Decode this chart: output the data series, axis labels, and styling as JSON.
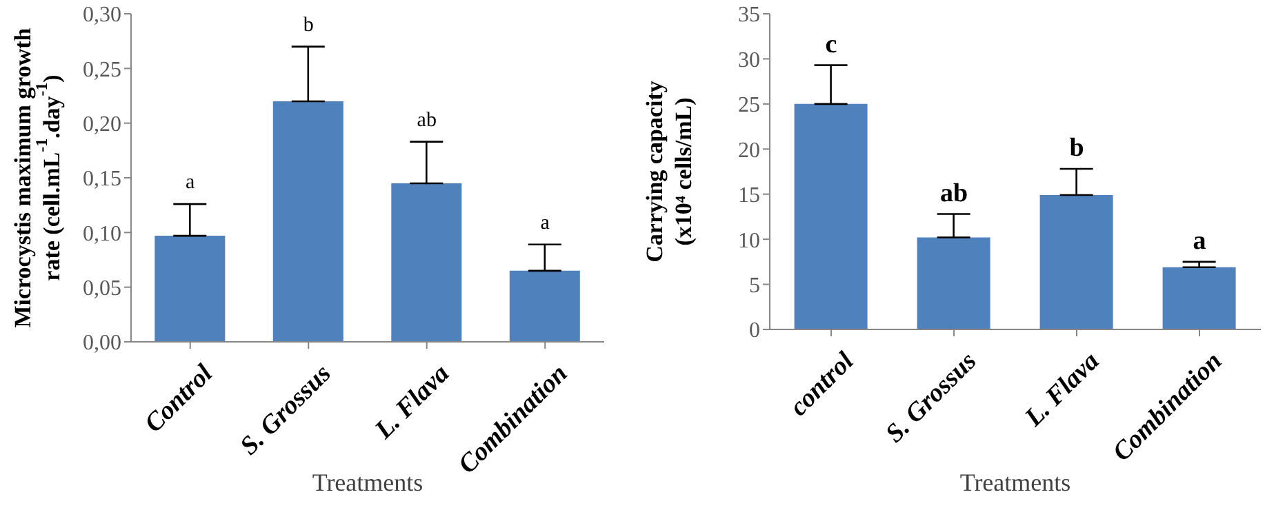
{
  "chart_data": [
    {
      "type": "bar",
      "xlabel": "Treatments",
      "ylabel": "Microcystis maximum growth rate (cell.mL$^{-1}$.day$^{-1}$)",
      "categories": [
        "Control",
        "S. Grossus",
        "L. Flava",
        "Combination"
      ],
      "series": [
        {
          "color": "#4f81bd",
          "values": [
            0.097,
            0.22,
            0.145,
            0.065
          ],
          "errors": [
            0.029,
            0.05,
            0.038,
            0.024
          ]
        }
      ],
      "ylim": [
        0,
        0.3
      ],
      "yticks": [
        {
          "value": 0,
          "label": "0,00"
        },
        {
          "value": 0.05,
          "label": "0,05"
        },
        {
          "value": 0.1,
          "label": "0,10"
        },
        {
          "value": 0.15,
          "label": "0,15"
        },
        {
          "value": 0.2,
          "label": "0,20"
        },
        {
          "value": 0.25,
          "label": "0,25"
        },
        {
          "value": 0.3,
          "label": "0,30"
        }
      ],
      "annotations": [
        "a",
        "b",
        "ab",
        "a"
      ]
    },
    {
      "type": "bar",
      "xlabel": "Treatments",
      "ylabel": "Carrying capacity (x10⁴ cells/mL)",
      "categories": [
        "control",
        "S. Grossus",
        "L. Flava",
        "Combination"
      ],
      "series": [
        {
          "color": "#4f81bd",
          "values": [
            25,
            10.2,
            14.9,
            6.9
          ],
          "errors": [
            4.3,
            2.6,
            2.9,
            0.6
          ]
        }
      ],
      "ylim": [
        0,
        35
      ],
      "yticks": [
        0,
        5,
        10,
        15,
        20,
        25,
        30,
        35
      ],
      "annotations": [
        "c",
        "ab",
        "b",
        "a"
      ]
    }
  ]
}
